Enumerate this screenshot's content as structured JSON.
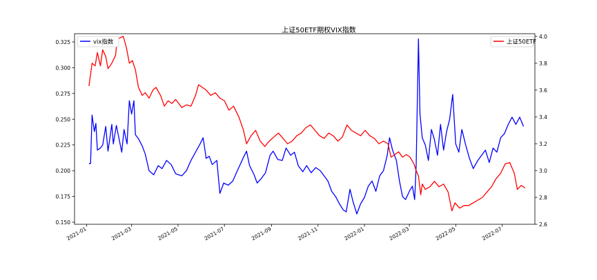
{
  "chart_data": {
    "type": "line",
    "title": "上证50ETF期权VIX指数",
    "xlabel": "",
    "ylabel_left": "",
    "ylabel_right": "",
    "x_ticks": [
      "2021-01",
      "2021-03",
      "2021-05",
      "2021-07",
      "2021-09",
      "2021-11",
      "2022-01",
      "2022-03",
      "2022-05",
      "2022-07"
    ],
    "x_range": [
      "2020-12-16",
      "2022-08-13"
    ],
    "y_left": {
      "range": [
        0.148,
        0.333
      ],
      "ticks": [
        "0.150",
        "0.175",
        "0.200",
        "0.225",
        "0.250",
        "0.275",
        "0.300",
        "0.325"
      ]
    },
    "y_right": {
      "range": [
        2.6,
        4.02
      ],
      "ticks": [
        "2.6",
        "2.8",
        "3.0",
        "3.2",
        "3.4",
        "3.6",
        "3.8",
        "4.0"
      ]
    },
    "grid": false,
    "series": [
      {
        "name": "vix指数",
        "axis": "left",
        "color": "#0000ff",
        "legend_position": "upper left",
        "points": [
          [
            "2021-01-04",
            0.207
          ],
          [
            "2021-01-06",
            0.207
          ],
          [
            "2021-01-08",
            0.254
          ],
          [
            "2021-01-11",
            0.238
          ],
          [
            "2021-01-13",
            0.246
          ],
          [
            "2021-01-15",
            0.22
          ],
          [
            "2021-01-19",
            0.222
          ],
          [
            "2021-01-22",
            0.225
          ],
          [
            "2021-01-26",
            0.243
          ],
          [
            "2021-01-29",
            0.219
          ],
          [
            "2021-02-03",
            0.245
          ],
          [
            "2021-02-05",
            0.226
          ],
          [
            "2021-02-09",
            0.244
          ],
          [
            "2021-02-16",
            0.218
          ],
          [
            "2021-02-19",
            0.24
          ],
          [
            "2021-02-23",
            0.226
          ],
          [
            "2021-02-26",
            0.268
          ],
          [
            "2021-03-01",
            0.255
          ],
          [
            "2021-03-04",
            0.268
          ],
          [
            "2021-03-06",
            0.235
          ],
          [
            "2021-03-10",
            0.231
          ],
          [
            "2021-03-15",
            0.224
          ],
          [
            "2021-03-19",
            0.216
          ],
          [
            "2021-03-24",
            0.2
          ],
          [
            "2021-03-30",
            0.196
          ],
          [
            "2021-04-05",
            0.205
          ],
          [
            "2021-04-10",
            0.202
          ],
          [
            "2021-04-16",
            0.21
          ],
          [
            "2021-04-22",
            0.206
          ],
          [
            "2021-04-28",
            0.197
          ],
          [
            "2021-05-06",
            0.195
          ],
          [
            "2021-05-12",
            0.2
          ],
          [
            "2021-05-18",
            0.21
          ],
          [
            "2021-05-24",
            0.218
          ],
          [
            "2021-05-30",
            0.226
          ],
          [
            "2021-06-03",
            0.232
          ],
          [
            "2021-06-07",
            0.212
          ],
          [
            "2021-06-11",
            0.214
          ],
          [
            "2021-06-15",
            0.206
          ],
          [
            "2021-06-21",
            0.21
          ],
          [
            "2021-06-25",
            0.178
          ],
          [
            "2021-06-30",
            0.188
          ],
          [
            "2021-07-06",
            0.186
          ],
          [
            "2021-07-12",
            0.19
          ],
          [
            "2021-07-18",
            0.2
          ],
          [
            "2021-07-26",
            0.213
          ],
          [
            "2021-07-30",
            0.219
          ],
          [
            "2021-08-03",
            0.205
          ],
          [
            "2021-08-09",
            0.196
          ],
          [
            "2021-08-13",
            0.188
          ],
          [
            "2021-08-18",
            0.192
          ],
          [
            "2021-08-24",
            0.198
          ],
          [
            "2021-08-30",
            0.215
          ],
          [
            "2021-09-03",
            0.219
          ],
          [
            "2021-09-09",
            0.211
          ],
          [
            "2021-09-15",
            0.21
          ],
          [
            "2021-09-20",
            0.222
          ],
          [
            "2021-09-26",
            0.215
          ],
          [
            "2021-10-01",
            0.218
          ],
          [
            "2021-10-06",
            0.205
          ],
          [
            "2021-10-12",
            0.199
          ],
          [
            "2021-10-17",
            0.205
          ],
          [
            "2021-10-23",
            0.198
          ],
          [
            "2021-10-29",
            0.203
          ],
          [
            "2021-11-04",
            0.2
          ],
          [
            "2021-11-09",
            0.195
          ],
          [
            "2021-11-14",
            0.19
          ],
          [
            "2021-11-19",
            0.18
          ],
          [
            "2021-11-24",
            0.175
          ],
          [
            "2021-11-29",
            0.168
          ],
          [
            "2021-12-04",
            0.162
          ],
          [
            "2021-12-08",
            0.16
          ],
          [
            "2021-12-13",
            0.182
          ],
          [
            "2021-12-17",
            0.17
          ],
          [
            "2021-12-22",
            0.158
          ],
          [
            "2021-12-27",
            0.168
          ],
          [
            "2022-01-01",
            0.174
          ],
          [
            "2022-01-06",
            0.185
          ],
          [
            "2022-01-11",
            0.19
          ],
          [
            "2022-01-16",
            0.18
          ],
          [
            "2022-01-21",
            0.195
          ],
          [
            "2022-01-26",
            0.2
          ],
          [
            "2022-01-31",
            0.215
          ],
          [
            "2022-02-03",
            0.232
          ],
          [
            "2022-02-07",
            0.22
          ],
          [
            "2022-02-12",
            0.21
          ],
          [
            "2022-02-16",
            0.19
          ],
          [
            "2022-02-20",
            0.175
          ],
          [
            "2022-02-24",
            0.172
          ],
          [
            "2022-03-01",
            0.18
          ],
          [
            "2022-03-05",
            0.185
          ],
          [
            "2022-03-08",
            0.172
          ],
          [
            "2022-03-10",
            0.205
          ],
          [
            "2022-03-13",
            0.328
          ],
          [
            "2022-03-15",
            0.255
          ],
          [
            "2022-03-18",
            0.232
          ],
          [
            "2022-03-22",
            0.225
          ],
          [
            "2022-03-26",
            0.21
          ],
          [
            "2022-03-30",
            0.24
          ],
          [
            "2022-04-03",
            0.23
          ],
          [
            "2022-04-07",
            0.215
          ],
          [
            "2022-04-11",
            0.245
          ],
          [
            "2022-04-15",
            0.22
          ],
          [
            "2022-04-19",
            0.238
          ],
          [
            "2022-04-23",
            0.25
          ],
          [
            "2022-04-27",
            0.274
          ],
          [
            "2022-05-01",
            0.226
          ],
          [
            "2022-05-05",
            0.218
          ],
          [
            "2022-05-09",
            0.24
          ],
          [
            "2022-05-14",
            0.225
          ],
          [
            "2022-05-19",
            0.212
          ],
          [
            "2022-05-24",
            0.202
          ],
          [
            "2022-05-30",
            0.21
          ],
          [
            "2022-06-04",
            0.215
          ],
          [
            "2022-06-09",
            0.22
          ],
          [
            "2022-06-14",
            0.208
          ],
          [
            "2022-06-19",
            0.222
          ],
          [
            "2022-06-24",
            0.218
          ],
          [
            "2022-06-29",
            0.232
          ],
          [
            "2022-07-04",
            0.236
          ],
          [
            "2022-07-09",
            0.245
          ],
          [
            "2022-07-14",
            0.252
          ],
          [
            "2022-07-19",
            0.245
          ],
          [
            "2022-07-24",
            0.252
          ],
          [
            "2022-07-29",
            0.243
          ]
        ]
      },
      {
        "name": "上证50ETF",
        "axis": "right",
        "color": "#ff0000",
        "legend_position": "upper right",
        "points": [
          [
            "2021-01-04",
            3.63
          ],
          [
            "2021-01-08",
            3.8
          ],
          [
            "2021-01-12",
            3.78
          ],
          [
            "2021-01-15",
            3.88
          ],
          [
            "2021-01-19",
            3.78
          ],
          [
            "2021-01-22",
            3.9
          ],
          [
            "2021-01-26",
            3.85
          ],
          [
            "2021-01-29",
            3.76
          ],
          [
            "2021-02-03",
            3.8
          ],
          [
            "2021-02-08",
            3.86
          ],
          [
            "2021-02-10",
            3.98
          ],
          [
            "2021-02-18",
            4.0
          ],
          [
            "2021-02-22",
            3.92
          ],
          [
            "2021-02-26",
            3.8
          ],
          [
            "2021-03-02",
            3.82
          ],
          [
            "2021-03-06",
            3.75
          ],
          [
            "2021-03-10",
            3.62
          ],
          [
            "2021-03-15",
            3.56
          ],
          [
            "2021-03-19",
            3.58
          ],
          [
            "2021-03-24",
            3.54
          ],
          [
            "2021-03-29",
            3.6
          ],
          [
            "2021-04-02",
            3.62
          ],
          [
            "2021-04-08",
            3.56
          ],
          [
            "2021-04-13",
            3.48
          ],
          [
            "2021-04-18",
            3.52
          ],
          [
            "2021-04-23",
            3.5
          ],
          [
            "2021-04-28",
            3.53
          ],
          [
            "2021-05-06",
            3.47
          ],
          [
            "2021-05-12",
            3.49
          ],
          [
            "2021-05-18",
            3.48
          ],
          [
            "2021-05-24",
            3.56
          ],
          [
            "2021-05-28",
            3.64
          ],
          [
            "2021-06-02",
            3.62
          ],
          [
            "2021-06-07",
            3.6
          ],
          [
            "2021-06-13",
            3.56
          ],
          [
            "2021-06-19",
            3.58
          ],
          [
            "2021-06-25",
            3.54
          ],
          [
            "2021-07-01",
            3.52
          ],
          [
            "2021-07-07",
            3.45
          ],
          [
            "2021-07-13",
            3.48
          ],
          [
            "2021-07-20",
            3.4
          ],
          [
            "2021-07-26",
            3.3
          ],
          [
            "2021-07-30",
            3.2
          ],
          [
            "2021-08-05",
            3.26
          ],
          [
            "2021-08-11",
            3.3
          ],
          [
            "2021-08-17",
            3.22
          ],
          [
            "2021-08-23",
            3.18
          ],
          [
            "2021-08-29",
            3.22
          ],
          [
            "2021-09-04",
            3.25
          ],
          [
            "2021-09-10",
            3.28
          ],
          [
            "2021-09-16",
            3.24
          ],
          [
            "2021-09-22",
            3.2
          ],
          [
            "2021-09-28",
            3.22
          ],
          [
            "2021-10-04",
            3.26
          ],
          [
            "2021-10-10",
            3.28
          ],
          [
            "2021-10-16",
            3.32
          ],
          [
            "2021-10-22",
            3.34
          ],
          [
            "2021-10-28",
            3.3
          ],
          [
            "2021-11-03",
            3.26
          ],
          [
            "2021-11-09",
            3.24
          ],
          [
            "2021-11-15",
            3.28
          ],
          [
            "2021-11-21",
            3.26
          ],
          [
            "2021-11-27",
            3.22
          ],
          [
            "2021-12-03",
            3.25
          ],
          [
            "2021-12-09",
            3.34
          ],
          [
            "2021-12-15",
            3.3
          ],
          [
            "2021-12-21",
            3.28
          ],
          [
            "2021-12-27",
            3.26
          ],
          [
            "2022-01-02",
            3.3
          ],
          [
            "2022-01-08",
            3.26
          ],
          [
            "2022-01-14",
            3.24
          ],
          [
            "2022-01-20",
            3.2
          ],
          [
            "2022-01-26",
            3.22
          ],
          [
            "2022-02-01",
            3.2
          ],
          [
            "2022-02-05",
            3.1
          ],
          [
            "2022-02-10",
            3.12
          ],
          [
            "2022-02-15",
            3.14
          ],
          [
            "2022-02-20",
            3.1
          ],
          [
            "2022-02-25",
            3.12
          ],
          [
            "2022-03-02",
            3.1
          ],
          [
            "2022-03-07",
            3.05
          ],
          [
            "2022-03-10",
            3.0
          ],
          [
            "2022-03-13",
            2.96
          ],
          [
            "2022-03-16",
            2.82
          ],
          [
            "2022-03-18",
            2.9
          ],
          [
            "2022-03-22",
            2.86
          ],
          [
            "2022-03-28",
            2.88
          ],
          [
            "2022-04-03",
            2.92
          ],
          [
            "2022-04-09",
            2.88
          ],
          [
            "2022-04-15",
            2.9
          ],
          [
            "2022-04-21",
            2.84
          ],
          [
            "2022-04-26",
            2.7
          ],
          [
            "2022-04-30",
            2.76
          ],
          [
            "2022-05-06",
            2.72
          ],
          [
            "2022-05-12",
            2.74
          ],
          [
            "2022-05-18",
            2.74
          ],
          [
            "2022-05-24",
            2.76
          ],
          [
            "2022-05-30",
            2.78
          ],
          [
            "2022-06-05",
            2.8
          ],
          [
            "2022-06-11",
            2.84
          ],
          [
            "2022-06-17",
            2.88
          ],
          [
            "2022-06-23",
            2.94
          ],
          [
            "2022-06-29",
            2.98
          ],
          [
            "2022-07-05",
            3.05
          ],
          [
            "2022-07-11",
            3.06
          ],
          [
            "2022-07-17",
            2.98
          ],
          [
            "2022-07-21",
            2.86
          ],
          [
            "2022-07-26",
            2.89
          ],
          [
            "2022-07-31",
            2.87
          ]
        ]
      }
    ]
  }
}
